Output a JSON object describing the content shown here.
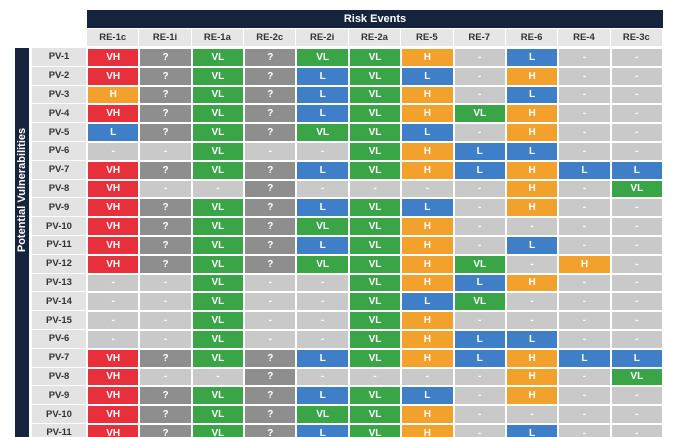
{
  "header": {
    "title": "Risk Events",
    "side_title": "Potential Vulnerabilities"
  },
  "table": {
    "columns": [
      "RE-1c",
      "RE-1i",
      "RE-1a",
      "RE-2c",
      "RE-2i",
      "RE-2a",
      "RE-5",
      "RE-7",
      "RE-6",
      "RE-4",
      "RE-3c"
    ],
    "rows": [
      {
        "label": "PV-1",
        "cells": [
          "VH",
          "?",
          "VL",
          "?",
          "VL",
          "VL",
          "H",
          "-",
          "L",
          "-",
          "-"
        ]
      },
      {
        "label": "PV-2",
        "cells": [
          "VH",
          "?",
          "VL",
          "?",
          "L",
          "VL",
          "L",
          "-",
          "H",
          "-",
          "-"
        ]
      },
      {
        "label": "PV-3",
        "cells": [
          "H",
          "?",
          "VL",
          "?",
          "L",
          "VL",
          "H",
          "-",
          "L",
          "-",
          "-"
        ]
      },
      {
        "label": "PV-4",
        "cells": [
          "VH",
          "?",
          "VL",
          "?",
          "L",
          "VL",
          "H",
          "VL",
          "H",
          "-",
          "-"
        ]
      },
      {
        "label": "PV-5",
        "cells": [
          "L",
          "?",
          "VL",
          "?",
          "VL",
          "VL",
          "L",
          "-",
          "H",
          "-",
          "-"
        ]
      },
      {
        "label": "PV-6",
        "cells": [
          "-",
          "-",
          "VL",
          "-",
          "-",
          "VL",
          "H",
          "L",
          "L",
          "-",
          "-"
        ]
      },
      {
        "label": "PV-7",
        "cells": [
          "VH",
          "?",
          "VL",
          "?",
          "L",
          "VL",
          "H",
          "L",
          "H",
          "L",
          "L"
        ]
      },
      {
        "label": "PV-8",
        "cells": [
          "VH",
          "-",
          "-",
          "?",
          "-",
          "-",
          "-",
          "-",
          "H",
          "-",
          "VL"
        ]
      },
      {
        "label": "PV-9",
        "cells": [
          "VH",
          "?",
          "VL",
          "?",
          "L",
          "VL",
          "L",
          "-",
          "H",
          "-",
          "-"
        ]
      },
      {
        "label": "PV-10",
        "cells": [
          "VH",
          "?",
          "VL",
          "?",
          "VL",
          "VL",
          "H",
          "-",
          "-",
          "-",
          "-"
        ]
      },
      {
        "label": "PV-11",
        "cells": [
          "VH",
          "?",
          "VL",
          "?",
          "L",
          "VL",
          "H",
          "-",
          "L",
          "-",
          "-"
        ]
      },
      {
        "label": "PV-12",
        "cells": [
          "VH",
          "?",
          "VL",
          "?",
          "VL",
          "VL",
          "H",
          "VL",
          "-",
          "H",
          "-"
        ]
      },
      {
        "label": "PV-13",
        "cells": [
          "-",
          "-",
          "VL",
          "-",
          "-",
          "VL",
          "H",
          "L",
          "H",
          "-",
          "-"
        ]
      },
      {
        "label": "PV-14",
        "cells": [
          "-",
          "-",
          "VL",
          "-",
          "-",
          "VL",
          "L",
          "VL",
          "-",
          "-",
          "-"
        ]
      },
      {
        "label": "PV-15",
        "cells": [
          "-",
          "-",
          "VL",
          "-",
          "-",
          "VL",
          "H",
          "-",
          "-",
          "-",
          "-"
        ]
      },
      {
        "label": "PV-6",
        "cells": [
          "-",
          "-",
          "VL",
          "-",
          "-",
          "VL",
          "H",
          "L",
          "L",
          "-",
          "-"
        ]
      },
      {
        "label": "PV-7",
        "cells": [
          "VH",
          "?",
          "VL",
          "?",
          "L",
          "VL",
          "H",
          "L",
          "H",
          "L",
          "L"
        ]
      },
      {
        "label": "PV-8",
        "cells": [
          "VH",
          "-",
          "-",
          "?",
          "-",
          "-",
          "-",
          "-",
          "H",
          "-",
          "VL"
        ]
      },
      {
        "label": "PV-9",
        "cells": [
          "VH",
          "?",
          "VL",
          "?",
          "L",
          "VL",
          "L",
          "-",
          "H",
          "-",
          "-"
        ]
      },
      {
        "label": "PV-10",
        "cells": [
          "VH",
          "?",
          "VL",
          "?",
          "VL",
          "VL",
          "H",
          "-",
          "-",
          "-",
          "-"
        ]
      },
      {
        "label": "PV-11",
        "cells": [
          "VH",
          "?",
          "VL",
          "?",
          "L",
          "VL",
          "H",
          "-",
          "L",
          "-",
          "-"
        ]
      }
    ]
  },
  "colors": {
    "VH": "#e8303c",
    "H": "#f2a22c",
    "L": "#3f7fc8",
    "VL": "#3aa547",
    "?": "#8e8e8e",
    "-": "#c9c9c9"
  }
}
